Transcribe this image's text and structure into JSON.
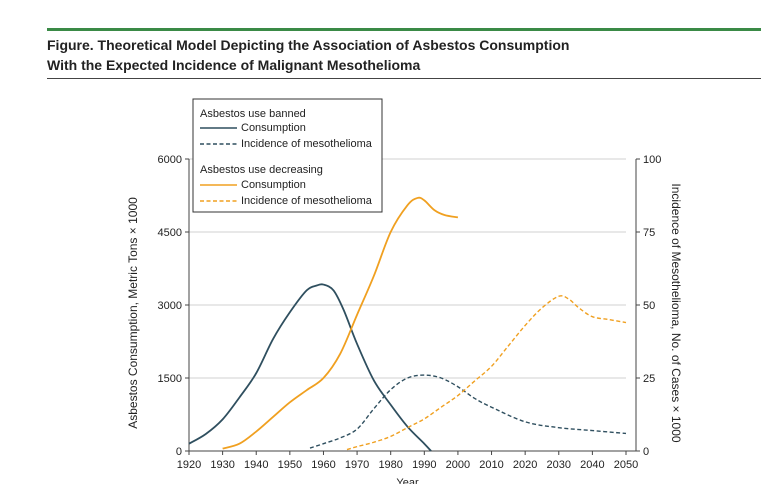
{
  "figure": {
    "title_line1": "Figure. Theoretical Model Depicting the Association of Asbestos Consumption",
    "title_line2": "With the Expected Incidence of Malignant Mesothelioma",
    "accent_color": "#3a8a46"
  },
  "chart_data": {
    "type": "line",
    "xlabel": "Year",
    "ylabel_left": "Asbestos Consumption, Metric Tons × 1000",
    "ylabel_right": "Incidence of Mesothelioma, No. of Cases × 1000",
    "xlim": [
      1920,
      2050
    ],
    "ylim_left": [
      0,
      6000
    ],
    "ylim_right": [
      0,
      100
    ],
    "x_ticks": [
      1920,
      1930,
      1940,
      1950,
      1960,
      1970,
      1980,
      1990,
      2000,
      2010,
      2020,
      2030,
      2040,
      2050
    ],
    "y_left_ticks": [
      0,
      1500,
      3000,
      4500,
      6000
    ],
    "y_right_ticks": [
      0,
      25,
      50,
      75,
      100
    ],
    "grid": true,
    "legend": {
      "group1_title": "Asbestos use banned",
      "group2_title": "Asbestos use decreasing",
      "consumption_label": "Consumption",
      "incidence_label": "Incidence of mesothelioma"
    },
    "series": [
      {
        "name": "Asbestos use banned — Consumption",
        "axis": "left",
        "color": "#2f4f5f",
        "dashed": false,
        "x": [
          1920,
          1925,
          1930,
          1935,
          1940,
          1945,
          1950,
          1955,
          1958,
          1960,
          1963,
          1966,
          1970,
          1975,
          1980,
          1985,
          1990,
          1992
        ],
        "y": [
          150,
          350,
          650,
          1100,
          1600,
          2300,
          2850,
          3300,
          3400,
          3420,
          3300,
          2900,
          2200,
          1450,
          950,
          500,
          150,
          0
        ]
      },
      {
        "name": "Asbestos use banned — Incidence of mesothelioma",
        "axis": "right",
        "color": "#2f4f5f",
        "dashed": true,
        "x": [
          1956,
          1960,
          1965,
          1970,
          1975,
          1980,
          1985,
          1990,
          1995,
          2000,
          2005,
          2010,
          2020,
          2030,
          2040,
          2050
        ],
        "y": [
          1,
          2.5,
          4.5,
          7.5,
          14.5,
          21,
          25,
          26,
          25,
          22,
          18,
          15,
          10,
          8,
          7,
          6
        ]
      },
      {
        "name": "Asbestos use decreasing — Consumption",
        "axis": "left",
        "color": "#f0a020",
        "dashed": false,
        "x": [
          1930,
          1935,
          1940,
          1945,
          1950,
          1955,
          1960,
          1965,
          1970,
          1975,
          1980,
          1985,
          1988,
          1990,
          1993,
          1996,
          2000
        ],
        "y": [
          50,
          150,
          400,
          700,
          1000,
          1250,
          1500,
          2000,
          2800,
          3600,
          4500,
          5050,
          5200,
          5150,
          4950,
          4850,
          4800
        ]
      },
      {
        "name": "Asbestos use decreasing — Incidence of mesothelioma",
        "axis": "right",
        "color": "#f0a020",
        "dashed": true,
        "x": [
          1967,
          1970,
          1975,
          1980,
          1985,
          1990,
          1995,
          2000,
          2005,
          2010,
          2015,
          2020,
          2025,
          2030,
          2033,
          2036,
          2040,
          2045,
          2050
        ],
        "y": [
          0.5,
          1.5,
          3,
          5,
          8,
          11,
          15,
          19,
          24,
          29,
          36,
          43,
          49,
          53,
          52,
          49,
          46,
          45,
          44
        ]
      }
    ]
  }
}
